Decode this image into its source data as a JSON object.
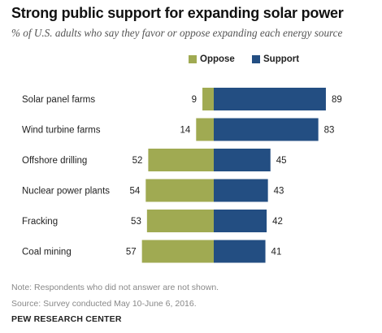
{
  "title": "Strong public support for expanding solar power",
  "subtitle": "% of U.S. adults who say they favor or oppose expanding each energy source",
  "colors": {
    "oppose": "#a0aa52",
    "support": "#234e82"
  },
  "chart_data": {
    "type": "bar",
    "orientation": "horizontal-diverging",
    "categories": [
      "Solar panel farms",
      "Wind turbine farms",
      "Offshore drilling",
      "Nuclear power plants",
      "Fracking",
      "Coal mining"
    ],
    "series": [
      {
        "name": "Oppose",
        "values": [
          9,
          14,
          52,
          54,
          53,
          57
        ]
      },
      {
        "name": "Support",
        "values": [
          89,
          83,
          45,
          43,
          42,
          41
        ]
      }
    ],
    "legend_position": "top"
  },
  "note": "Note: Respondents who did not answer are not shown.",
  "source": "Source: Survey conducted May 10-June 6, 2016.",
  "brand": "PEW RESEARCH CENTER"
}
